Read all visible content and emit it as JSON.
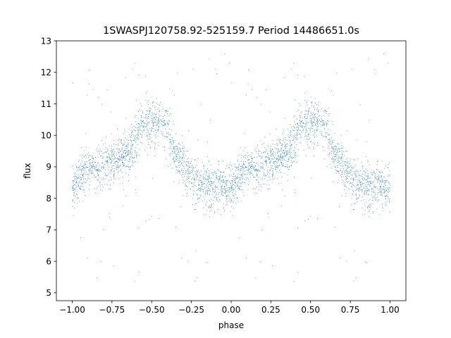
{
  "chart_data": {
    "type": "scatter",
    "title": "1SWASPJ120758.92-525159.7 Period 14486651.0s",
    "xlabel": "phase",
    "ylabel": "flux",
    "xlim": [
      -1.1,
      1.1
    ],
    "ylim": [
      4.75,
      13.0
    ],
    "xticks": [
      -1.0,
      -0.75,
      -0.5,
      -0.25,
      0.0,
      0.25,
      0.5,
      0.75,
      1.0
    ],
    "xtick_labels": [
      "−1.00",
      "−0.75",
      "−0.50",
      "−0.25",
      "0.00",
      "0.25",
      "0.50",
      "0.75",
      "1.00"
    ],
    "yticks": [
      5,
      6,
      7,
      8,
      9,
      10,
      11,
      12,
      13
    ],
    "ytick_labels": [
      "5",
      "6",
      "7",
      "8",
      "9",
      "10",
      "11",
      "12",
      "13"
    ],
    "grid": false,
    "legend": "none",
    "series": [
      {
        "color": "#1f77b4",
        "marker_size": 0.5,
        "phase_range": [
          -1.0,
          1.0
        ],
        "symmetry": "mirrored about phase 0 (x and x+1 identical)",
        "trend": {
          "x": [
            0.0,
            0.05,
            0.1,
            0.2,
            0.3,
            0.38,
            0.42,
            0.46,
            0.5,
            0.55,
            0.6,
            0.65,
            0.7,
            0.8,
            0.9,
            1.0
          ],
          "y": [
            8.3,
            8.7,
            8.9,
            9.0,
            9.2,
            9.6,
            10.2,
            10.4,
            10.5,
            10.4,
            10.2,
            9.4,
            9.0,
            8.4,
            8.3,
            8.3
          ]
        },
        "spread": 0.35,
        "outlier_range": [
          5.2,
          12.6
        ]
      }
    ]
  }
}
